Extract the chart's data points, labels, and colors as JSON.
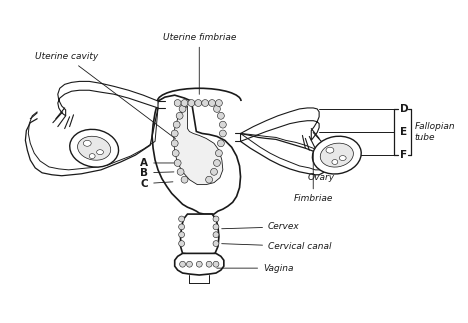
{
  "background_color": "#ffffff",
  "line_color": "#1a1a1a",
  "text_color": "#1a1a1a",
  "font_size": 6.5,
  "labels": {
    "uterine_cavity": "Uterine cavity",
    "uterine_fimbriae": "Uterine fimbriae",
    "A": "A",
    "B": "B",
    "C": "C",
    "D": "D",
    "E": "E",
    "F": "F",
    "fallopian_tube": "Fallopian\ntube",
    "ovary": "Ovary",
    "fimbriae": "Fimbriae",
    "cervex": "Cervex",
    "cervical_canal": "Cervical canal",
    "vagina": "Vagina"
  }
}
